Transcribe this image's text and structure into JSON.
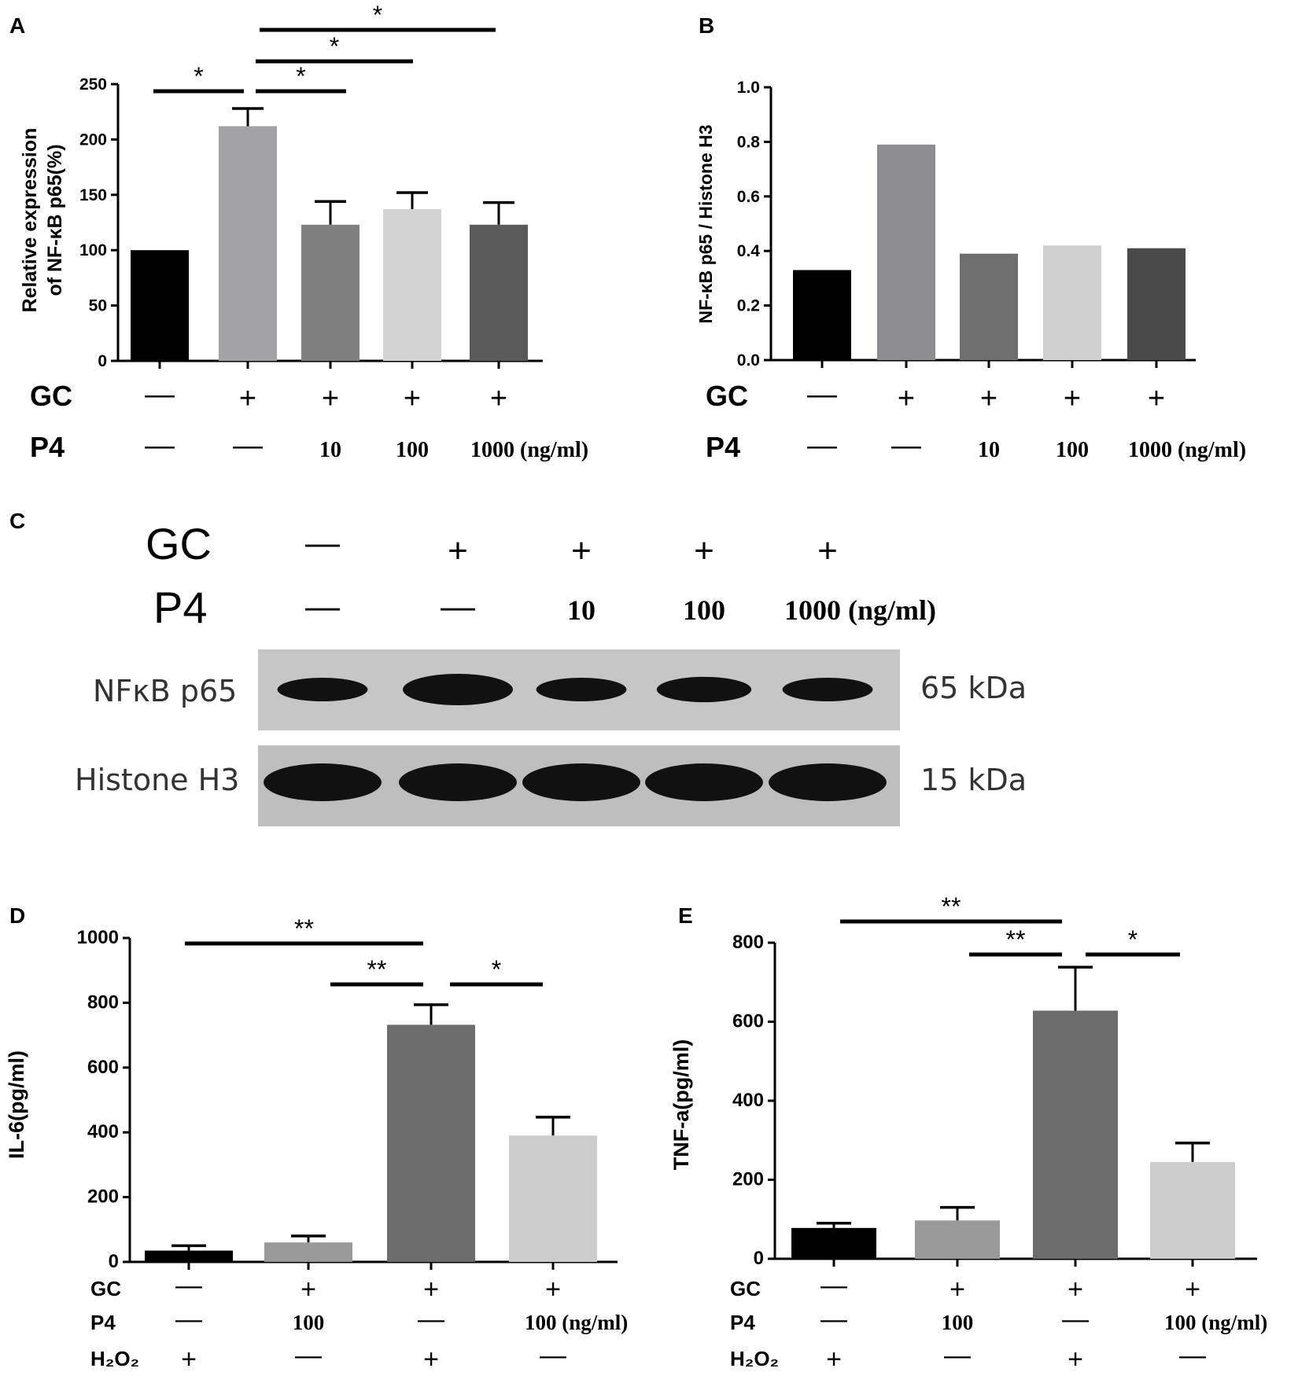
{
  "panels": {
    "A": "A",
    "B": "B",
    "C": "C",
    "D": "D",
    "E": "E"
  },
  "chart_data": [
    {
      "id": "A",
      "type": "bar",
      "ylabel_line1": "Relative expression",
      "ylabel_line2": "of NF-κB p65(%)",
      "ylim": [
        0,
        250
      ],
      "yticks": [
        0,
        50,
        100,
        150,
        200,
        250
      ],
      "values": [
        100,
        212,
        123,
        137,
        123
      ],
      "errors": [
        0,
        16,
        21,
        15,
        20
      ],
      "colors": [
        "#000000",
        "#a3a3a6",
        "#7f7f7f",
        "#d3d3d3",
        "#5a5a5a"
      ],
      "conditions": [
        {
          "label": "GC",
          "values": [
            "—",
            "+",
            "+",
            "+",
            "+"
          ]
        },
        {
          "label": "P4",
          "values": [
            "—",
            "—",
            "10",
            "100",
            "1000 (ng/ml)"
          ]
        }
      ],
      "significance": [
        {
          "from": 0,
          "to": 1,
          "label": "*"
        },
        {
          "from": 1,
          "to": 2,
          "label": "*"
        },
        {
          "from": 1,
          "to": 3,
          "label": "*"
        },
        {
          "from": 1,
          "to": 4,
          "label": "*"
        }
      ]
    },
    {
      "id": "B",
      "type": "bar",
      "ylabel": "NF-κB p65 / Histone H3",
      "ylim": [
        0,
        1.0
      ],
      "yticks": [
        "0.0",
        "0.2",
        "0.4",
        "0.6",
        "0.8",
        "1.0"
      ],
      "values": [
        0.33,
        0.79,
        0.39,
        0.42,
        0.41
      ],
      "colors": [
        "#000000",
        "#8e8e92",
        "#6f6f6f",
        "#cfcfcf",
        "#4a4a4a"
      ],
      "conditions": [
        {
          "label": "GC",
          "values": [
            "—",
            "+",
            "+",
            "+",
            "+"
          ]
        },
        {
          "label": "P4",
          "values": [
            "—",
            "—",
            "10",
            "100",
            "1000 (ng/ml)"
          ]
        }
      ]
    },
    {
      "id": "D",
      "type": "bar",
      "ylabel": "IL-6(pg/ml)",
      "ylim": [
        0,
        1000
      ],
      "yticks": [
        0,
        200,
        400,
        600,
        800,
        1000
      ],
      "values": [
        35,
        60,
        732,
        390
      ],
      "errors": [
        15,
        20,
        62,
        57
      ],
      "colors": [
        "#000000",
        "#999999",
        "#6c6c6c",
        "#cccccc"
      ],
      "conditions": [
        {
          "label": "GC",
          "values": [
            "—",
            "+",
            "+",
            "+"
          ]
        },
        {
          "label": "P4",
          "values": [
            "—",
            "100",
            "—",
            "100 (ng/ml)"
          ]
        },
        {
          "label": "H₂O₂",
          "values": [
            "+",
            "—",
            "+",
            "—"
          ]
        }
      ],
      "significance": [
        {
          "from": 0,
          "to": 2,
          "label": "**"
        },
        {
          "from": 1,
          "to": 2,
          "label": "**"
        },
        {
          "from": 2,
          "to": 3,
          "label": "*"
        }
      ]
    },
    {
      "id": "E",
      "type": "bar",
      "ylabel": "TNF-a(pg/ml)",
      "ylim": [
        0,
        800
      ],
      "yticks": [
        0,
        200,
        400,
        600,
        800
      ],
      "values": [
        78,
        97,
        628,
        245
      ],
      "errors": [
        12,
        33,
        110,
        48
      ],
      "colors": [
        "#000000",
        "#9a9a9a",
        "#6c6c6c",
        "#cccccc"
      ],
      "conditions": [
        {
          "label": "GC",
          "values": [
            "—",
            "+",
            "+",
            "+"
          ]
        },
        {
          "label": "P4",
          "values": [
            "—",
            "100",
            "—",
            "100 (ng/ml)"
          ]
        },
        {
          "label": "H₂O₂",
          "values": [
            "+",
            "—",
            "+",
            "—"
          ]
        }
      ],
      "significance": [
        {
          "from": 0,
          "to": 2,
          "label": "**"
        },
        {
          "from": 1,
          "to": 2,
          "label": "**"
        },
        {
          "from": 2,
          "to": 3,
          "label": "*"
        }
      ]
    }
  ],
  "blot": {
    "conditions": [
      {
        "label": "GC",
        "values": [
          "—",
          "+",
          "+",
          "+",
          "+"
        ]
      },
      {
        "label": "P4",
        "values": [
          "—",
          "—",
          "10",
          "100",
          "1000 (ng/ml)"
        ]
      }
    ],
    "rows": [
      {
        "label": "NFκB p65",
        "size": "65 kDa",
        "band_intensity": [
          0.55,
          1.0,
          0.55,
          0.65,
          0.55
        ]
      },
      {
        "label": "Histone H3",
        "size": "15 kDa",
        "band_intensity": [
          1.0,
          1.0,
          1.0,
          1.0,
          1.0
        ]
      }
    ]
  }
}
